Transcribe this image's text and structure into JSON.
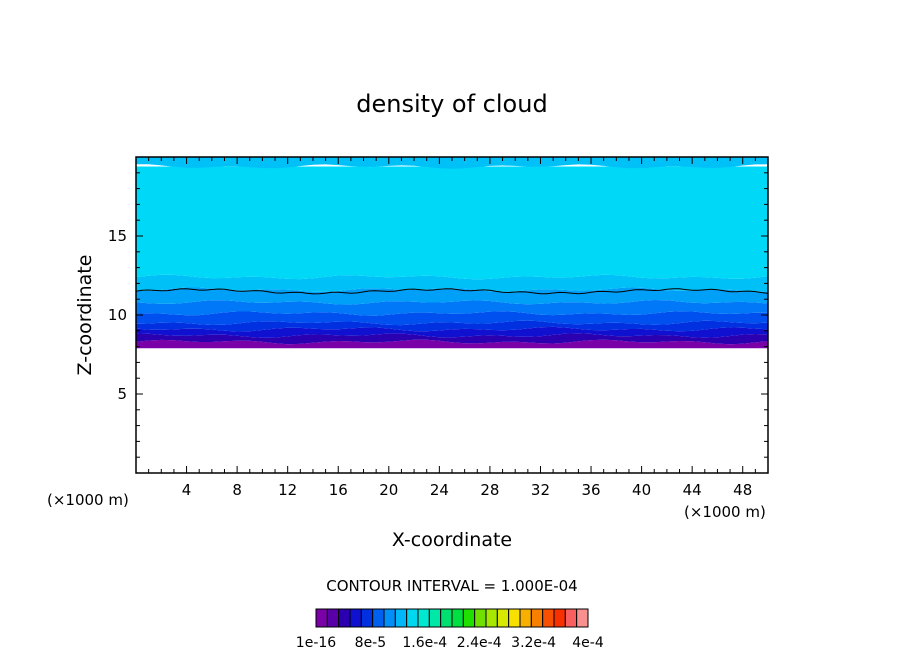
{
  "chart_data": {
    "type": "heatmap",
    "title": "density of cloud",
    "xlabel": "X-coordinate",
    "ylabel": "Z-coordinate",
    "x_unit": "(×1000 m)",
    "z_unit": "(×1000 m)",
    "xlim": [
      0,
      50
    ],
    "ylim": [
      0,
      20
    ],
    "x_ticks": [
      4,
      8,
      12,
      16,
      20,
      24,
      28,
      32,
      36,
      40,
      44,
      48
    ],
    "y_ticks": [
      5,
      10,
      15
    ],
    "contour_interval_text": "CONTOUR INTERVAL = 1.000E-04",
    "colorbar": {
      "colors": [
        "#7a00a8",
        "#5a00a8",
        "#2a00b0",
        "#1010d0",
        "#0030e0",
        "#0060f0",
        "#0090f8",
        "#00b8f8",
        "#00d8f0",
        "#00e8d0",
        "#00e8a8",
        "#00e070",
        "#00e040",
        "#20e000",
        "#70e000",
        "#a8e800",
        "#d8e800",
        "#f8e000",
        "#f8b000",
        "#f88000",
        "#f85000",
        "#f83000",
        "#f86060",
        "#f89090"
      ],
      "labels": [
        "1e-16",
        "8e-5",
        "1.6e-4",
        "2.4e-4",
        "3.2e-4",
        "4e-4"
      ]
    },
    "bands": [
      {
        "z_bottom": 7.9,
        "z_top": 8.3,
        "color": "#7a00a8"
      },
      {
        "z_bottom": 8.3,
        "z_top": 8.7,
        "color": "#2a00b0"
      },
      {
        "z_bottom": 8.7,
        "z_top": 9.1,
        "color": "#1010d0"
      },
      {
        "z_bottom": 9.1,
        "z_top": 9.5,
        "color": "#0030e0"
      },
      {
        "z_bottom": 9.5,
        "z_top": 10.1,
        "color": "#0050f0"
      },
      {
        "z_bottom": 10.1,
        "z_top": 10.8,
        "color": "#0078f8"
      },
      {
        "z_bottom": 10.8,
        "z_top": 11.6,
        "color": "#00a0f8"
      },
      {
        "z_bottom": 11.6,
        "z_top": 12.4,
        "color": "#00c0f8"
      },
      {
        "z_bottom": 12.4,
        "z_top": 19.4,
        "color": "#00d8f8"
      },
      {
        "z_bottom": 19.4,
        "z_top": 20.0,
        "color": "#00c0f8"
      }
    ],
    "contour_line_z": 11.5
  }
}
